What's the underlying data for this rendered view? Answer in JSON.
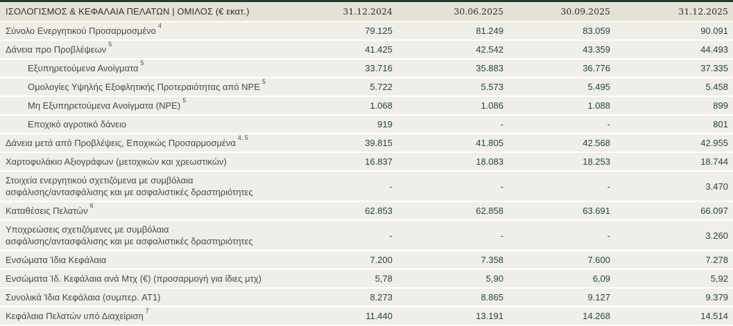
{
  "sheet": {
    "title": "ΙΣΟΛΟΓΙΣΜΟΣ & ΚΕΦΑΛΑΙΑ ΠΕΛΑΤΩΝ | ΟΜΙΛΟΣ (€ εκατ.)",
    "columns": [
      "31.12.2024",
      "30.06.2025",
      "30.09.2025",
      "31.12.2025"
    ],
    "rows": [
      {
        "label": "Σύνολο Ενεργητικού Προσαρμοσμένο",
        "sup": "4",
        "values": [
          "79.125",
          "81.249",
          "83.059",
          "90.091"
        ]
      },
      {
        "label": "Δάνεια προ Προβλέψεων",
        "sup": "5",
        "values": [
          "41.425",
          "42.542",
          "43.359",
          "44.493"
        ]
      },
      {
        "label": "Εξυπηρετούμενα Ανοίγματα",
        "sup": "5",
        "values": [
          "33.716",
          "35.883",
          "36.776",
          "37.335"
        ]
      },
      {
        "label": "Ομολογίες Υψηλής Εξοφλητικής Προτεραιότητας από NPE",
        "sup": "5",
        "values": [
          "5.722",
          "5.573",
          "5.495",
          "5.458"
        ]
      },
      {
        "label": "Μη Εξυπηρετούμενα Ανοίγματα (NPE)",
        "sup": "5",
        "values": [
          "1.068",
          "1.086",
          "1.088",
          "899"
        ]
      },
      {
        "label": "Εποχικό αγροτικό δάνειο",
        "values": [
          "919",
          "-",
          "-",
          "801"
        ]
      },
      {
        "label": "Δάνεια μετά από Προβλέψεις, Εποχικώς Προσαρμοσμένα",
        "sup": "4, 5",
        "values": [
          "39.815",
          "41.805",
          "42.568",
          "42.955"
        ]
      },
      {
        "label": "Χαρτοφυλάκιο Αξιογράφων (μετοχικών και χρεωστικών)",
        "values": [
          "16.837",
          "18.083",
          "18.253",
          "18.744"
        ]
      },
      {
        "label": "Στοιχεία ενεργητικού σχετιζόμενα με συμβόλαια",
        "label2": "ασφάλισης/αντασφάλισης και με ασφαλιστικές δραστηριότητες",
        "values": [
          "-",
          "-",
          "-",
          "3.470"
        ]
      },
      {
        "label": "Καταθέσεις Πελατών",
        "sup": "6",
        "values": [
          "62.853",
          "62.858",
          "63.691",
          "66.097"
        ]
      },
      {
        "label": "Υποχρεώσεις σχετιζόμενες με συμβόλαια",
        "label2": "ασφάλισης/αντασφάλισης και με ασφαλιστικές δραστηριότητες",
        "values": [
          "-",
          "-",
          "-",
          "3.260"
        ]
      },
      {
        "label": "Ενσώματα Ίδια Κεφάλαια",
        "values": [
          "7.200",
          "7.358",
          "7.600",
          "7.278"
        ]
      },
      {
        "label": "Ενσώματα Ίδ. Κεφάλαια ανά Μτχ (€) (προσαρμογή για ίδιες μτχ)",
        "values": [
          "5,78",
          "5,90",
          "6,09",
          "5,92"
        ]
      },
      {
        "label": "Συνολικά Ίδια Κεφάλαια (συμπερ. AT1)",
        "values": [
          "8.273",
          "8.865",
          "9.127",
          "9.379"
        ]
      },
      {
        "label": "Κεφάλαια Πελατών υπό Διαχείριση",
        "sup": "7",
        "values": [
          "11.440",
          "13.191",
          "14.268",
          "14.514"
        ]
      }
    ],
    "colors": {
      "top_border": "#1f3c36",
      "header_background": "#e5e2d5",
      "row_background": "#f0eee8",
      "row_separator": "#ffffff",
      "label_text": "#454a45",
      "number_text": "#1c473e"
    }
  }
}
